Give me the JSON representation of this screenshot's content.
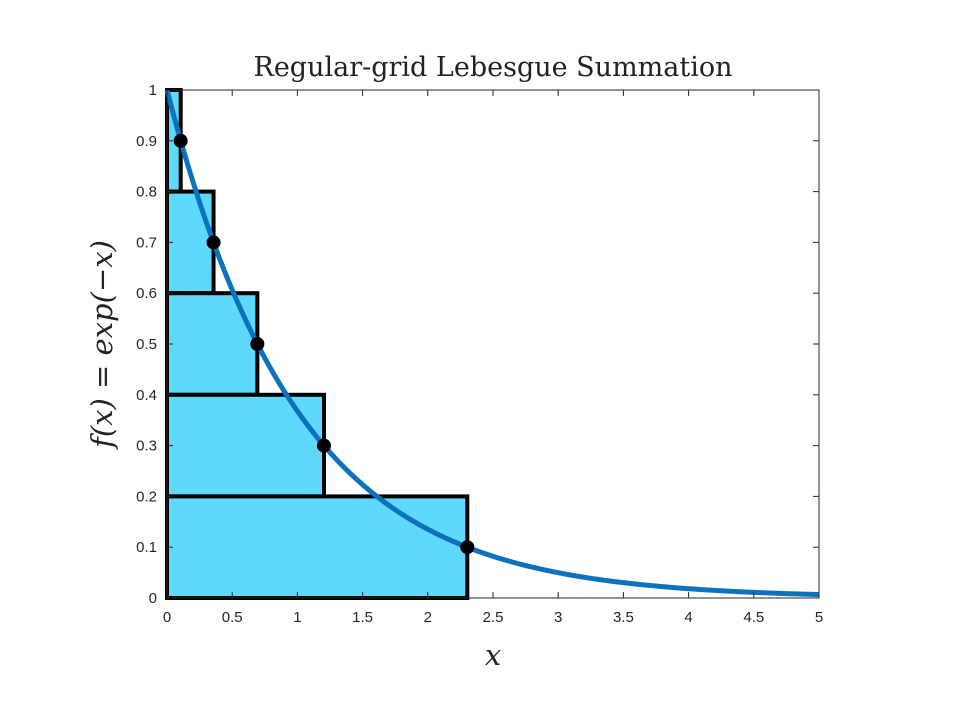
{
  "chart_data": {
    "type": "area",
    "title": "Regular-grid Lebesgue Summation",
    "xlabel": "x",
    "ylabel": "f(x) = exp(−x)",
    "xlim": [
      0,
      5
    ],
    "ylim": [
      0,
      1
    ],
    "x_ticks": [
      "0",
      "0.5",
      "1",
      "1.5",
      "2",
      "2.5",
      "3",
      "3.5",
      "4",
      "4.5",
      "5"
    ],
    "y_ticks": [
      "0",
      "0.1",
      "0.2",
      "0.3",
      "0.4",
      "0.5",
      "0.6",
      "0.7",
      "0.8",
      "0.9",
      "1"
    ],
    "grid": false,
    "curve": {
      "function": "exp(-x)",
      "x_range": [
        0,
        5
      ]
    },
    "rectangles": [
      {
        "x0": 0,
        "x1": 0.105,
        "y0": 0.8,
        "y1": 1.0
      },
      {
        "x0": 0,
        "x1": 0.357,
        "y0": 0.6,
        "y1": 0.8
      },
      {
        "x0": 0,
        "x1": 0.693,
        "y0": 0.4,
        "y1": 0.6
      },
      {
        "x0": 0,
        "x1": 1.204,
        "y0": 0.2,
        "y1": 0.4
      },
      {
        "x0": 0,
        "x1": 2.303,
        "y0": 0.0,
        "y1": 0.2
      }
    ],
    "points": [
      {
        "x": 0.105,
        "y": 0.9
      },
      {
        "x": 0.357,
        "y": 0.7
      },
      {
        "x": 0.693,
        "y": 0.5
      },
      {
        "x": 1.204,
        "y": 0.3
      },
      {
        "x": 2.303,
        "y": 0.1
      }
    ],
    "colors": {
      "fill": "#5ed8fc",
      "edge": "#000000",
      "curve": "#0d72bd",
      "points": "#000000",
      "axes": "#262626"
    }
  }
}
